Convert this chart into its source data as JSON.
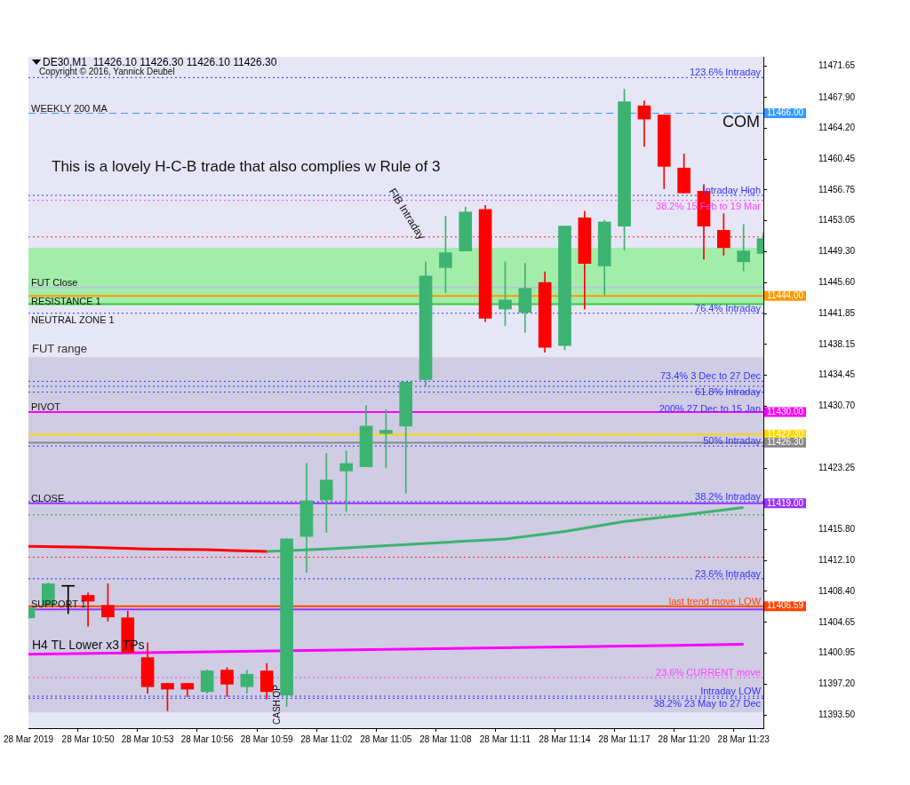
{
  "chart_data": {
    "type": "candlestick",
    "title": "DE30,M1  11426.10 11426.30 11426.10 11426.30",
    "categories": [
      "28 Mar 2019",
      null,
      null,
      "28 Mar 10:50",
      null,
      null,
      "28 Mar 10:53",
      null,
      null,
      "28 Mar 10:56",
      null,
      null,
      "28 Mar 10:59",
      null,
      null,
      "28 Mar 11:02",
      null,
      null,
      "28 Mar 11:05",
      null,
      null,
      "28 Mar 11:08",
      null,
      null,
      "28 Mar 11:11",
      null,
      null,
      "28 Mar 11:14",
      null,
      null,
      "28 Mar 11:17",
      null,
      null,
      "28 Mar 11:20",
      null,
      null,
      "28 Mar 11:23",
      null
    ],
    "ohlc": [
      [
        11405.2,
        11406.5,
        11405.1,
        11406.4
      ],
      [
        11406.7,
        11409.4,
        11406.7,
        11409.3
      ],
      [
        11409.0,
        11409.0,
        11405.7,
        11409.0
      ],
      [
        11407.9,
        11408.2,
        11404.2,
        11407.2
      ],
      [
        11406.7,
        11409.3,
        11404.8,
        11405.3
      ],
      [
        11405.2,
        11406.0,
        11401.0,
        11401.0
      ],
      [
        11400.4,
        11402.2,
        11396.1,
        11396.9
      ],
      [
        11397.3,
        11397.3,
        11394.0,
        11396.6
      ],
      [
        11397.3,
        11397.3,
        11395.7,
        11396.6
      ],
      [
        11396.3,
        11398.9,
        11396.1,
        11398.8
      ],
      [
        11398.9,
        11399.2,
        11395.7,
        11397.2
      ],
      [
        11396.9,
        11398.9,
        11396.1,
        11398.4
      ],
      [
        11398.8,
        11399.7,
        11395.4,
        11396.3
      ],
      [
        11395.9,
        11414.7,
        11394.5,
        11414.7
      ],
      [
        11415.0,
        11423.8,
        11410.7,
        11419.3
      ],
      [
        11419.4,
        11425.0,
        11415.5,
        11421.8
      ],
      [
        11422.9,
        11425.3,
        11418.0,
        11423.8
      ],
      [
        11423.4,
        11430.8,
        11423.4,
        11428.3
      ],
      [
        11427.4,
        11430.3,
        11423.3,
        11427.8
      ],
      [
        11428.3,
        11433.6,
        11420.2,
        11433.6
      ],
      [
        11433.9,
        11448.1,
        11433.1,
        11446.4
      ],
      [
        11447.4,
        11453.6,
        11444.4,
        11449.2
      ],
      [
        11449.4,
        11454.7,
        11449.4,
        11454.1
      ],
      [
        11454.4,
        11454.9,
        11440.9,
        11441.3
      ],
      [
        11442.4,
        11448.1,
        11440.4,
        11443.5
      ],
      [
        11442.0,
        11447.9,
        11439.6,
        11444.9
      ],
      [
        11445.6,
        11446.9,
        11437.2,
        11437.8
      ],
      [
        11438.0,
        11452.4,
        11437.5,
        11452.4
      ],
      [
        11453.4,
        11454.2,
        11442.4,
        11447.9
      ],
      [
        11447.6,
        11453.1,
        11444.1,
        11452.9
      ],
      [
        11452.4,
        11468.9,
        11449.5,
        11467.4
      ],
      [
        11466.9,
        11467.5,
        11462.0,
        11465.3
      ],
      [
        11465.8,
        11465.8,
        11456.9,
        11459.6
      ],
      [
        11459.4,
        11461.1,
        11456.4,
        11456.4
      ],
      [
        11456.6,
        11457.4,
        11448.4,
        11452.4
      ],
      [
        11451.9,
        11453.9,
        11448.9,
        11449.8
      ],
      [
        11448.1,
        11452.6,
        11447.0,
        11449.4
      ],
      [
        11449.1,
        11451.6,
        11449.1,
        11450.9
      ]
    ],
    "colors": [
      "#3cb371",
      "#3cb371",
      "#000000",
      "#ff0000",
      "#ff0000",
      "#ff0000",
      "#ff0000",
      "#ff0000",
      "#ff0000",
      "#3cb371",
      "#ff0000",
      "#3cb371",
      "#ff0000",
      "#3cb371",
      "#3cb371",
      "#3cb371",
      "#3cb371",
      "#3cb371",
      "#3cb371",
      "#3cb371",
      "#3cb371",
      "#3cb371",
      "#3cb371",
      "#ff0000",
      "#3cb371",
      "#3cb371",
      "#ff0000",
      "#3cb371",
      "#ff0000",
      "#3cb371",
      "#3cb371",
      "#ff0000",
      "#ff0000",
      "#ff0000",
      "#ff0000",
      "#ff0000",
      "#3cb371",
      "#3cb371"
    ],
    "series": [
      {
        "type": "line",
        "color": "#ff0000",
        "x": [
          "28 Mar 2019",
          "28 Mar 10:50",
          "28 Mar 10:53",
          "28 Mar 10:56",
          "28 Mar 10:59"
        ],
        "values": [
          11413.8,
          11413.7,
          11413.5,
          11413.4,
          11413.2
        ]
      },
      {
        "type": "line",
        "color": "#3cb371",
        "x": [
          "28 Mar 10:59",
          "28 Mar 11:02",
          "28 Mar 11:05",
          "28 Mar 11:08",
          "28 Mar 11:11",
          "28 Mar 11:14",
          "28 Mar 11:17",
          "28 Mar 11:20",
          "28 Mar 11:23"
        ],
        "values": [
          11413.2,
          11413.5,
          11413.9,
          11414.3,
          11414.7,
          11415.6,
          11416.8,
          11417.6,
          11418.5
        ]
      },
      {
        "type": "line",
        "name": "H4 TL Lower x3 TPs",
        "color": "#ff00ff",
        "x": [
          "28 Mar 2019",
          "28 Mar 11:23"
        ],
        "values": [
          11400.8,
          11402.0
        ]
      }
    ],
    "ylim": [
      11391.9,
      11472.8
    ],
    "yticks": [
      11471.65,
      {
        "value": 11467.9,
        "label": "11467.90"
      },
      {
        "value": 11464.2,
        "label": "11464.20"
      },
      11460.45,
      11456.75,
      11453.05,
      {
        "value": 11449.3,
        "label": "11449.30"
      },
      {
        "value": 11445.6,
        "label": "11445.60"
      },
      11441.85,
      11438.15,
      11434.45,
      {
        "value": 11430.7,
        "label": "11430.70"
      },
      11423.25,
      {
        "value": 11415.8,
        "label": "11415.80"
      },
      {
        "value": 11412.1,
        "label": "11412.10"
      },
      {
        "value": 11408.4,
        "label": "11408.40"
      },
      11404.65,
      11400.95,
      {
        "value": 11397.2,
        "label": "11397.20"
      },
      {
        "value": 11393.5,
        "label": "11393.50"
      }
    ],
    "ref_lines": [
      {
        "axis": "y",
        "value": 11470.3,
        "color": "#3333ff",
        "line_style": "dotted"
      },
      {
        "axis": "y",
        "value": 11466,
        "color": "#3399ff",
        "line_style": "dashed",
        "label": "11466.00"
      },
      {
        "axis": "y",
        "value": 11456.1,
        "color": "#3333ff",
        "line_style": "dotted"
      },
      {
        "axis": "y",
        "value": 11455.5,
        "color": "#ff44ff",
        "line_style": "dotted"
      },
      {
        "axis": "y",
        "value": 11451.1,
        "color": "#ff2222",
        "line_style": "dotted"
      },
      {
        "axis": "y",
        "value": 11445,
        "color": "#b8c4d8",
        "line_style": "solid"
      },
      {
        "axis": "y",
        "value": 11444,
        "color": "#ff9900",
        "line_style": "solid",
        "label": "11444.00"
      },
      {
        "axis": "y",
        "value": 11443,
        "color": "#33cc33",
        "line_style": "solid"
      },
      {
        "axis": "y",
        "value": 11441.9,
        "color": "#3333ff",
        "line_style": "dotted"
      },
      {
        "axis": "y",
        "value": 11433.7,
        "color": "#3333ff",
        "line_style": "dotted"
      },
      {
        "axis": "y",
        "value": 11433.1,
        "color": "#3333ff",
        "line_style": "dotted"
      },
      {
        "axis": "y",
        "value": 11432.4,
        "color": "#3333ff",
        "line_style": "dotted"
      },
      {
        "axis": "y",
        "value": 11430,
        "color": "#ff00ff",
        "line_style": "solid",
        "label": "11430.00"
      },
      {
        "axis": "y",
        "value": 11427.3,
        "color": "#ffd700",
        "line_style": "solid",
        "label": "11427.30"
      },
      {
        "axis": "y",
        "value": 11426.3,
        "color": "#8a8a8a",
        "line_style": "solid",
        "label": "11426.30"
      },
      {
        "axis": "y",
        "value": 11425.9,
        "color": "#3333ff",
        "line_style": "dotted"
      },
      {
        "axis": "y",
        "value": 11419.2,
        "color": "#3333ff",
        "line_style": "dotted"
      },
      {
        "axis": "y",
        "value": 11419,
        "color": "#9933ff",
        "line_style": "solid",
        "label": "11419.00"
      },
      {
        "axis": "y",
        "value": 11417.6,
        "color": "#339933",
        "line_style": "dotted"
      },
      {
        "axis": "y",
        "value": 11412.5,
        "color": "#ff2222",
        "line_style": "dotted"
      },
      {
        "axis": "y",
        "value": 11409.9,
        "color": "#3333ff",
        "line_style": "dotted"
      },
      {
        "axis": "y",
        "value": 11406.59,
        "color": "#ff4500",
        "line_style": "solid",
        "label": "11406.59"
      },
      {
        "axis": "y",
        "value": 11406.2,
        "color": "#9933ff",
        "line_style": "solid"
      },
      {
        "axis": "y",
        "value": 11398,
        "color": "#ff44ff",
        "line_style": "dotted"
      },
      {
        "axis": "y",
        "value": 11395.75,
        "color": "#3333ff",
        "line_style": "dotted"
      },
      {
        "axis": "y",
        "value": 11395.5,
        "color": "#3333ff",
        "line_style": "dotted"
      }
    ],
    "bands": [
      {
        "axis": "y",
        "from": 11393.8,
        "to": 11436.6,
        "label": "FUT range",
        "color": "#c4c0dc"
      },
      {
        "axis": "y",
        "from": 11443,
        "to": 11449.8,
        "color": "#86ef8a"
      }
    ],
    "annotations": [
      "Copyright © 2016, Yannick Deubel",
      "This is a lovely H-C-B trade that also complies w Rule of 3",
      "FIB Intraday",
      "CASH OP",
      "COM",
      {
        "text": "WEEKLY 200 MA",
        "x": "28 Mar 2019",
        "y": 11466
      },
      {
        "text": "123.6% Intraday",
        "x": "28 Mar 11:23",
        "y": 11470.3
      },
      {
        "text": "Intraday High",
        "x": "28 Mar 11:23",
        "y": 11456.1
      },
      {
        "text": "38.2% 15 Feb to 19 Mar",
        "x": "28 Mar 11:23",
        "y": 11455.5
      },
      {
        "text": "FUT Close",
        "x": "28 Mar 2019",
        "y": 11445
      },
      {
        "text": "RESISTANCE 1",
        "x": "28 Mar 2019",
        "y": 11444
      },
      {
        "text": "NEUTRAL ZONE 1",
        "x": "28 Mar 2019",
        "y": 11443
      },
      {
        "text": "76.4% Intraday",
        "x": "28 Mar 11:23",
        "y": 11441.9
      },
      {
        "text": "73.4% 3 Dec to 27 Dec",
        "x": "28 Mar 11:23",
        "y": 11433.7
      },
      {
        "text": "61.8% Intraday",
        "x": "28 Mar 11:23",
        "y": 11433.1
      },
      {
        "text": "200% 27 Dec to 15 Jan",
        "x": "28 Mar 11:23",
        "y": 11432.4
      },
      {
        "text": "PIVOT",
        "x": "28 Mar 2019",
        "y": 11430
      },
      {
        "text": "50% Intraday",
        "x": "28 Mar 11:23",
        "y": 11425.9
      },
      {
        "text": "CLOSE",
        "x": "28 Mar 2019",
        "y": 11419
      },
      {
        "text": "38.2% Intraday",
        "x": "28 Mar 11:23",
        "y": 11419.2
      },
      {
        "text": "23.6% Intraday",
        "x": "28 Mar 11:23",
        "y": 11409.9
      },
      {
        "text": "last trend move LOW",
        "x": "28 Mar 11:23",
        "y": 11406.59
      },
      {
        "text": "SUPPORT 1",
        "x": "28 Mar 2019",
        "y": 11406.2
      },
      {
        "text": "23.6% CURRENT move",
        "x": "28 Mar 11:23",
        "y": 11398
      },
      {
        "text": "Intraday LOW",
        "x": "28 Mar 11:23",
        "y": 11395.75
      },
      {
        "text": "38.2% 23 May to 27 Dec",
        "x": "28 Mar 11:23",
        "y": 11395.5
      }
    ],
    "legend": false
  }
}
